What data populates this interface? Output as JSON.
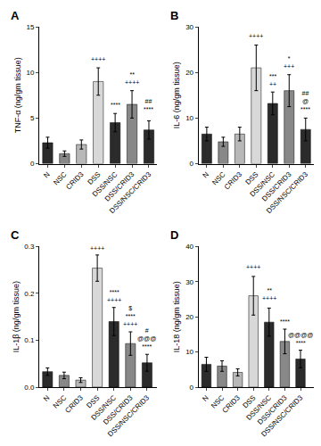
{
  "chart_data": [
    {
      "type": "bar",
      "title": "A",
      "ylabel": "TNF-α (ng/gm tissue)",
      "categories": [
        "N",
        "NSC",
        "CRID3",
        "DSS",
        "DSS/NSC",
        "DSS/CRID3",
        "DSS/NSC/CRID3"
      ],
      "values": [
        2.3,
        1.1,
        2.1,
        9.0,
        4.5,
        6.5,
        3.7
      ],
      "errors": [
        0.6,
        0.3,
        0.5,
        1.5,
        1.0,
        1.5,
        1.0
      ],
      "colors": [
        "#2b2b2b",
        "#888888",
        "#b8b8b8",
        "#d8d8d8",
        "#2b2b2b",
        "#888888",
        "#2b2b2b"
      ],
      "ylim": [
        0,
        15
      ],
      "yticks": [
        0,
        5,
        10,
        15
      ],
      "grid": false,
      "annotations": [
        {
          "category": "DSS",
          "lines": [
            "++++"
          ],
          "y": 11.0
        },
        {
          "category": "DSS/NSC",
          "lines": [
            "****"
          ],
          "y": 6.0
        },
        {
          "category": "DSS/CRID3",
          "lines": [
            "**",
            "++++"
          ],
          "y": 8.5
        },
        {
          "category": "DSS/NSC/CRID3",
          "lines": [
            "##",
            "****"
          ],
          "y": 5.5
        }
      ]
    },
    {
      "type": "bar",
      "title": "B",
      "ylabel": "IL-6 (ng/gm tissue)",
      "categories": [
        "N",
        "NSC",
        "CRID3",
        "DSS",
        "DSS/NSC",
        "DSS/CRID3",
        "DSS/NSC/CRID3"
      ],
      "values": [
        6.5,
        4.8,
        6.5,
        21.0,
        13.2,
        16.0,
        7.5
      ],
      "errors": [
        1.5,
        1.0,
        1.5,
        5.0,
        2.5,
        3.5,
        2.5
      ],
      "colors": [
        "#2b2b2b",
        "#888888",
        "#b8b8b8",
        "#d8d8d8",
        "#2b2b2b",
        "#888888",
        "#2b2b2b"
      ],
      "ylim": [
        0,
        30
      ],
      "yticks": [
        0,
        10,
        20,
        30
      ],
      "grid": false,
      "annotations": [
        {
          "category": "DSS",
          "lines": [
            "++++"
          ],
          "y": 27.0
        },
        {
          "category": "DSS/NSC",
          "lines": [
            "***",
            "++"
          ],
          "y": 16.5
        },
        {
          "category": "DSS/CRID3",
          "lines": [
            "*",
            "+++"
          ],
          "y": 20.5
        },
        {
          "category": "DSS/NSC/CRID3",
          "lines": [
            "##",
            "@",
            "****"
          ],
          "y": 11.0
        }
      ]
    },
    {
      "type": "bar",
      "title": "C",
      "ylabel": "IL-1β (ng/gm tissue)",
      "categories": [
        "N",
        "NSC",
        "CRID3",
        "DSS",
        "DSS/NSC",
        "DSS/CRID3",
        "DSS/NSC/CRID3"
      ],
      "values": [
        0.033,
        0.025,
        0.015,
        0.254,
        0.14,
        0.093,
        0.052
      ],
      "errors": [
        0.008,
        0.007,
        0.005,
        0.028,
        0.03,
        0.025,
        0.018
      ],
      "colors": [
        "#2b2b2b",
        "#888888",
        "#b8b8b8",
        "#d8d8d8",
        "#2b2b2b",
        "#888888",
        "#2b2b2b"
      ],
      "ylim": [
        0,
        0.3
      ],
      "yticks": [
        {
          "value": 0,
          "label": "0.0"
        },
        0.1,
        0.2,
        0.3
      ],
      "grid": false,
      "annotations": [
        {
          "category": "DSS",
          "lines": [
            "++++"
          ],
          "y": 0.288
        },
        {
          "category": "DSS/NSC",
          "lines": [
            "****",
            "++++"
          ],
          "y": 0.178
        },
        {
          "category": "DSS/CRID3",
          "lines": [
            "$",
            "****",
            "++++"
          ],
          "y": 0.126
        },
        {
          "category": "DSS/NSC/CRID3",
          "lines": [
            "#",
            "@@@",
            "****"
          ],
          "y": 0.079
        }
      ]
    },
    {
      "type": "bar",
      "title": "D",
      "ylabel": "IL-18 (ng/gm tissue)",
      "categories": [
        "N",
        "NSC",
        "CRID3",
        "DSS",
        "DSS/NSC",
        "DSS/CRID3",
        "DSS/NSC/CRID3"
      ],
      "values": [
        6.5,
        6.0,
        4.2,
        26.0,
        18.5,
        13.0,
        8.0
      ],
      "errors": [
        2.0,
        1.5,
        1.0,
        5.5,
        4.0,
        3.5,
        2.5
      ],
      "colors": [
        "#2b2b2b",
        "#888888",
        "#b8b8b8",
        "#d8d8d8",
        "#2b2b2b",
        "#888888",
        "#2b2b2b"
      ],
      "ylim": [
        0,
        40
      ],
      "yticks": [
        0,
        10,
        20,
        30,
        40
      ],
      "grid": false,
      "annotations": [
        {
          "category": "DSS",
          "lines": [
            "++++"
          ],
          "y": 33.0
        },
        {
          "category": "DSS/NSC",
          "lines": [
            "**",
            "++++"
          ],
          "y": 24.0
        },
        {
          "category": "DSS/CRID3",
          "lines": [
            "****"
          ],
          "y": 17.5
        },
        {
          "category": "DSS/NSC/CRID3",
          "lines": [
            "@@@@",
            "****"
          ],
          "y": 11.5
        }
      ]
    }
  ]
}
